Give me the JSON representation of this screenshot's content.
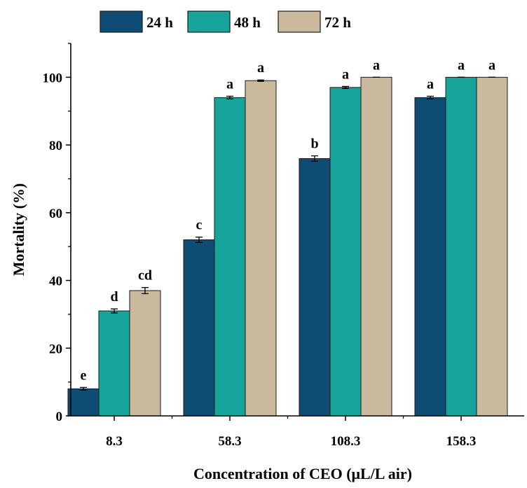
{
  "chart_data": {
    "type": "bar",
    "title": "",
    "xlabel": "Concentration of CEO (μL/L air)",
    "ylabel": "Mortality (%)",
    "categories": [
      "8.3",
      "58.3",
      "108.3",
      "158.3"
    ],
    "ylim": [
      0,
      110
    ],
    "yticks": [
      "0",
      "20",
      "40",
      "60",
      "80",
      "100"
    ],
    "legend_position": "top",
    "grid": false,
    "series": [
      {
        "name": "24 h",
        "color": "#0f4c73",
        "values": [
          8,
          52,
          76,
          94
        ],
        "errors": [
          0.4,
          0.8,
          0.8,
          0.4
        ],
        "letters": [
          "e",
          "c",
          "b",
          "a"
        ]
      },
      {
        "name": "48 h",
        "color": "#17a59b",
        "values": [
          31,
          94,
          97,
          100
        ],
        "errors": [
          0.6,
          0.4,
          0.3,
          0
        ],
        "letters": [
          "d",
          "a",
          "a",
          "a"
        ]
      },
      {
        "name": "72 h",
        "color": "#cab99d",
        "values": [
          37,
          99,
          100,
          100
        ],
        "errors": [
          0.9,
          0.2,
          0,
          0
        ],
        "letters": [
          "cd",
          "a",
          "a",
          "a"
        ]
      }
    ]
  }
}
